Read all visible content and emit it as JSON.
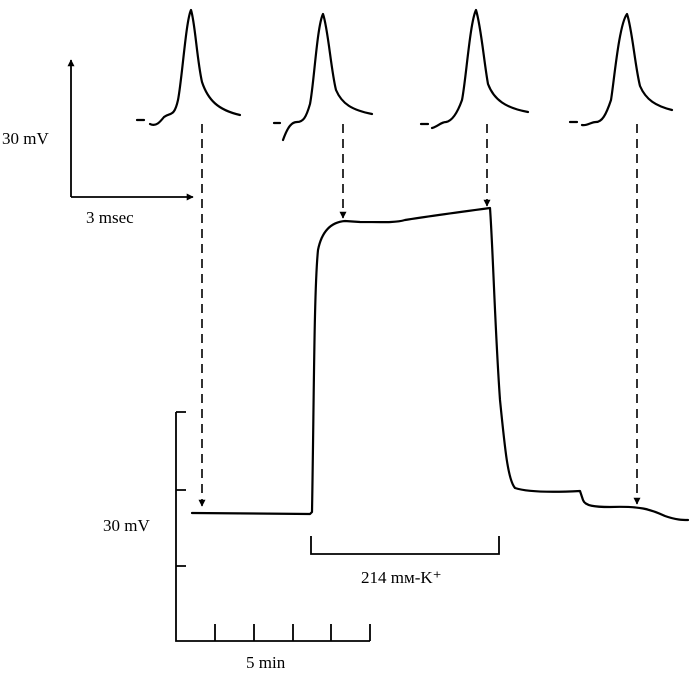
{
  "scale_bars": {
    "spike_voltage": "30 mV",
    "spike_time": "3 msec",
    "trace_voltage": "30 mV",
    "trace_time": "5 min"
  },
  "stimulus": {
    "label": "214 mм-K⁺"
  }
}
